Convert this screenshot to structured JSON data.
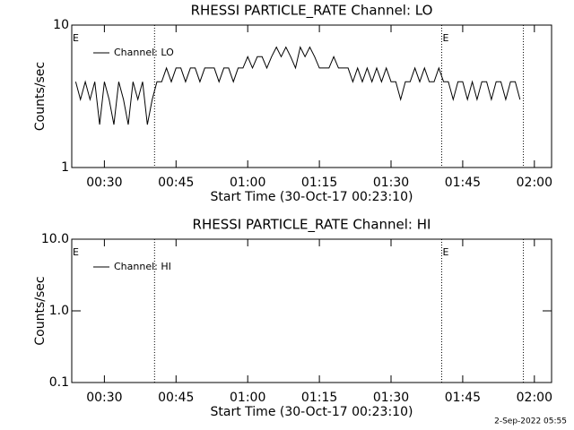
{
  "chart_data": [
    {
      "type": "line",
      "title": "RHESSI PARTICLE_RATE Channel: LO",
      "xlabel": "Start Time (30-Oct-17 00:23:10)",
      "ylabel": "Counts/sec",
      "log_y": true,
      "xlim": [
        23.17,
        123.6
      ],
      "ylim": [
        1,
        10
      ],
      "yticks": [
        1,
        10
      ],
      "xticks": [
        {
          "value": 30,
          "label": "00:30"
        },
        {
          "value": 45,
          "label": "00:45"
        },
        {
          "value": 60,
          "label": "01:00"
        },
        {
          "value": 75,
          "label": "01:15"
        },
        {
          "value": 90,
          "label": "01:30"
        },
        {
          "value": 105,
          "label": "01:45"
        },
        {
          "value": 120,
          "label": "02:00"
        }
      ],
      "markers": [
        40.5,
        100.6,
        117.7
      ],
      "annotations": [
        {
          "text": "E",
          "x": 23.17
        },
        {
          "text": "E",
          "x": 100.6
        }
      ],
      "series": [
        {
          "name": "Channel: LO",
          "color": "#000000",
          "x": [
            24,
            25,
            26,
            27,
            28,
            29,
            30,
            31,
            32,
            33,
            34,
            35,
            36,
            37,
            38,
            39,
            40,
            41,
            42,
            43,
            44,
            45,
            46,
            47,
            48,
            49,
            50,
            51,
            52,
            53,
            54,
            55,
            56,
            57,
            58,
            59,
            60,
            61,
            62,
            63,
            64,
            65,
            66,
            67,
            68,
            69,
            70,
            71,
            72,
            73,
            74,
            75,
            76,
            77,
            78,
            79,
            80,
            81,
            82,
            83,
            84,
            85,
            86,
            87,
            88,
            89,
            90,
            91,
            92,
            93,
            94,
            95,
            96,
            97,
            98,
            99,
            100,
            101,
            102,
            103,
            104,
            105,
            106,
            107,
            108,
            109,
            110,
            111,
            112,
            113,
            114,
            115,
            116,
            117
          ],
          "values": [
            4,
            3,
            4,
            3,
            4,
            2,
            4,
            3,
            2,
            4,
            3,
            2,
            4,
            3,
            4,
            2,
            3,
            4,
            4,
            5,
            4,
            5,
            5,
            4,
            5,
            5,
            4,
            5,
            5,
            5,
            4,
            5,
            5,
            4,
            5,
            5,
            6,
            5,
            6,
            6,
            5,
            6,
            7,
            6,
            7,
            6,
            5,
            7,
            6,
            7,
            6,
            5,
            5,
            5,
            6,
            5,
            5,
            5,
            4,
            5,
            4,
            5,
            4,
            5,
            4,
            5,
            4,
            4,
            3,
            4,
            4,
            5,
            4,
            5,
            4,
            4,
            5,
            4,
            4,
            3,
            4,
            4,
            3,
            4,
            3,
            4,
            4,
            3,
            4,
            4,
            3,
            4,
            4,
            3
          ]
        }
      ]
    },
    {
      "type": "line",
      "title": "RHESSI PARTICLE_RATE Channel: HI",
      "xlabel": "Start Time (30-Oct-17 00:23:10)",
      "ylabel": "Counts/sec",
      "log_y": true,
      "xlim": [
        23.17,
        123.6
      ],
      "ylim": [
        0.1,
        10
      ],
      "yticks": [
        0.1,
        {
          "value": 1,
          "label": "1.0"
        },
        {
          "value": 10,
          "label": "10.0"
        }
      ],
      "xticks": [
        {
          "value": 30,
          "label": "00:30"
        },
        {
          "value": 45,
          "label": "00:45"
        },
        {
          "value": 60,
          "label": "01:00"
        },
        {
          "value": 75,
          "label": "01:15"
        },
        {
          "value": 90,
          "label": "01:30"
        },
        {
          "value": 105,
          "label": "01:45"
        },
        {
          "value": 120,
          "label": "02:00"
        }
      ],
      "markers": [
        40.5,
        100.6,
        117.7
      ],
      "annotations": [
        {
          "text": "E",
          "x": 23.17
        },
        {
          "text": "E",
          "x": 100.6
        }
      ],
      "series": [
        {
          "name": "Channel: HI",
          "color": "#000000",
          "x": [],
          "values": []
        }
      ]
    }
  ],
  "footer": "2-Sep-2022 05:55"
}
